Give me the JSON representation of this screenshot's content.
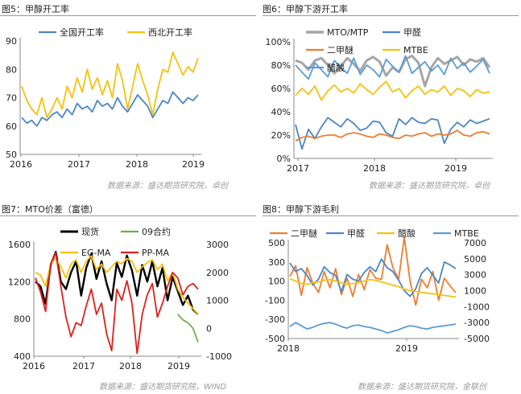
{
  "panels": [
    {
      "title": "图5：甲醇开工率",
      "source": "数据来源：盛达期货研究院，卓创"
    },
    {
      "title": "图6：甲醇下游开工率",
      "source": "数据来源：盛达期货研究院，卓创"
    },
    {
      "title": "图7：MTO价差（富德）",
      "source": "数据来源：盛达期货研究院，WIND"
    },
    {
      "title": "图8：甲醇下游毛利",
      "source": "数据来源：盛达期货研究院，金联创"
    }
  ],
  "colors": {
    "blue": "#4A86C8",
    "orange": "#ED7D31",
    "yellow": "#F4C20D",
    "gray": "#A6A6A6",
    "black": "#000000",
    "green": "#70AD47",
    "red": "#E0201B",
    "lightblue": "#5B9BD5"
  },
  "chart_data": [
    {
      "type": "line",
      "ylim": [
        50,
        85
      ],
      "yticks": [
        "50",
        "60",
        "70",
        "80",
        "90"
      ],
      "xticks": [
        "2016",
        "2017",
        "2018",
        "2019"
      ],
      "legend_position": "top",
      "series": [
        {
          "name": "全国开工率",
          "color": "blue",
          "values": [
            63,
            61,
            62,
            60,
            63,
            62,
            64,
            65,
            63,
            66,
            64,
            68,
            66,
            67,
            65,
            69,
            67,
            68,
            66,
            70,
            67,
            65,
            68,
            71,
            69,
            67,
            63,
            66,
            69,
            68,
            72,
            70,
            68,
            70,
            69,
            71
          ]
        },
        {
          "name": "西北开工率",
          "color": "yellow",
          "values": [
            74,
            69,
            66,
            64,
            70,
            63,
            66,
            70,
            66,
            74,
            70,
            77,
            72,
            80,
            73,
            77,
            71,
            76,
            70,
            82,
            76,
            66,
            74,
            82,
            76,
            71,
            64,
            73,
            80,
            79,
            86,
            82,
            78,
            81,
            79,
            84
          ]
        }
      ]
    },
    {
      "type": "line",
      "ylim": [
        0,
        100
      ],
      "yticks": [
        "0%",
        "20%",
        "40%",
        "60%",
        "80%",
        "100%"
      ],
      "xticks": [
        "2017",
        "2018",
        "2019"
      ],
      "legend_position": "top",
      "series": [
        {
          "name": "MTO/MTP",
          "color": "gray",
          "values": [
            84,
            82,
            76,
            84,
            86,
            80,
            73,
            79,
            86,
            81,
            75,
            84,
            87,
            83,
            71,
            78,
            74,
            85,
            88,
            82,
            62,
            78,
            86,
            81,
            84,
            87,
            80,
            85,
            83,
            86,
            78
          ]
        },
        {
          "name": "甲醛",
          "color": "blue",
          "values": [
            29,
            8,
            25,
            17,
            27,
            35,
            31,
            27,
            34,
            30,
            24,
            26,
            32,
            31,
            22,
            19,
            34,
            29,
            35,
            31,
            30,
            34,
            33,
            13,
            25,
            31,
            27,
            33,
            30,
            32,
            34
          ]
        },
        {
          "name": "二甲醚",
          "color": "orange",
          "values": [
            15,
            18,
            19,
            17,
            19,
            20,
            20,
            18,
            21,
            22,
            21,
            19,
            18,
            21,
            20,
            18,
            17,
            20,
            19,
            21,
            22,
            19,
            21,
            20,
            21,
            24,
            20,
            19,
            22,
            23,
            21
          ]
        },
        {
          "name": "MTBE",
          "color": "yellow",
          "values": [
            54,
            60,
            55,
            62,
            50,
            58,
            63,
            57,
            60,
            56,
            64,
            59,
            55,
            61,
            66,
            57,
            60,
            52,
            58,
            62,
            55,
            59,
            57,
            62,
            54,
            60,
            58,
            53,
            59,
            56,
            57
          ]
        },
        {
          "name": "醋酸",
          "color": "lightblue",
          "values": [
            80,
            74,
            68,
            82,
            76,
            70,
            84,
            78,
            73,
            86,
            72,
            80,
            76,
            70,
            85,
            79,
            74,
            88,
            73,
            78,
            83,
            75,
            80,
            72,
            86,
            77,
            82,
            74,
            79,
            85,
            73
          ]
        }
      ]
    },
    {
      "type": "line",
      "ylim_left": [
        400,
        1600
      ],
      "ylim_right": [
        -1000,
        3000
      ],
      "yticks_left": [
        "400",
        "800",
        "1200",
        "1600"
      ],
      "yticks_right": [
        "-1000",
        "0",
        "1000",
        "2000",
        "3000"
      ],
      "xticks": [
        "2016",
        "2017",
        "2018",
        "2019"
      ],
      "legend_position": "top",
      "series": [
        {
          "name": "现货",
          "color": "black",
          "axis": "left",
          "values": [
            1200,
            1150,
            960,
            1380,
            1520,
            1200,
            1120,
            1300,
            1420,
            1050,
            1350,
            1500,
            1230,
            1420,
            1180,
            1000,
            1400,
            1250,
            1480,
            1320,
            1050,
            1380,
            1200,
            1420,
            1150,
            1350,
            1000,
            1250,
            1100,
            950,
            1050,
            900,
            850
          ]
        },
        {
          "name": "09合约",
          "color": "green",
          "axis": "right",
          "values": [
            null,
            null,
            null,
            null,
            null,
            null,
            null,
            null,
            null,
            null,
            null,
            null,
            null,
            null,
            null,
            null,
            null,
            null,
            null,
            null,
            null,
            null,
            null,
            null,
            null,
            null,
            null,
            null,
            500,
            300,
            200,
            0,
            -500
          ]
        },
        {
          "name": "EG-MA",
          "color": "yellow",
          "axis": "right",
          "values": [
            2000,
            1900,
            1500,
            2300,
            2500,
            2200,
            1800,
            2300,
            2450,
            2000,
            2400,
            2600,
            2100,
            2300,
            2000,
            2200,
            2400,
            2300,
            2500,
            2400,
            2000,
            2200,
            2350,
            2450,
            2100,
            2300,
            1700,
            2000,
            1400,
            1100,
            900,
            700,
            500
          ]
        },
        {
          "name": "PP-MA",
          "color": "red",
          "axis": "right",
          "values": [
            1800,
            1300,
            600,
            2300,
            2700,
            1500,
            400,
            -300,
            200,
            100,
            800,
            1400,
            500,
            900,
            -200,
            -800,
            1400,
            1000,
            1700,
            900,
            -900,
            500,
            1200,
            1600,
            400,
            900,
            1500,
            2000,
            1800,
            1200,
            1500,
            1600,
            1400
          ]
        }
      ]
    },
    {
      "type": "line",
      "ylim_left": [
        -500,
        500
      ],
      "ylim_right": [
        -5000,
        7000
      ],
      "yticks_left": [
        "-500",
        "-300",
        "-100",
        "100",
        "300",
        "500"
      ],
      "yticks_right": [
        "-5000",
        "-3000",
        "-1000",
        "1000",
        "3000",
        "5000",
        "7000"
      ],
      "xticks": [
        "2018",
        "2019"
      ],
      "legend_position": "top",
      "series": [
        {
          "name": "二甲醚",
          "color": "orange",
          "axis": "left",
          "values": [
            150,
            260,
            -50,
            240,
            80,
            -20,
            200,
            30,
            230,
            -40,
            130,
            -60,
            170,
            10,
            220,
            130,
            120,
            480,
            240,
            120,
            560,
            100,
            -150,
            120,
            30,
            200,
            -100,
            130,
            50,
            -20
          ]
        },
        {
          "name": "甲醛",
          "color": "blue",
          "axis": "left",
          "values": [
            290,
            200,
            230,
            160,
            60,
            120,
            250,
            190,
            160,
            -10,
            170,
            120,
            100,
            190,
            250,
            200,
            330,
            240,
            200,
            110,
            0,
            -60,
            20,
            180,
            240,
            160,
            80,
            300,
            270,
            230
          ]
        },
        {
          "name": "醋酸",
          "color": "yellow",
          "axis": "right",
          "values": [
            2500,
            2200,
            1900,
            1800,
            2000,
            2100,
            2300,
            2400,
            2200,
            2000,
            1800,
            1900,
            2000,
            2200,
            2400,
            2300,
            2100,
            1900,
            1700,
            1500,
            1200,
            1000,
            900,
            800,
            700,
            600,
            500,
            400,
            300,
            200
          ]
        },
        {
          "name": "MTBE",
          "color": "lightblue",
          "axis": "right",
          "values": [
            -3500,
            -3000,
            -3400,
            -3800,
            -3600,
            -3300,
            -3100,
            -3000,
            -3200,
            -3500,
            -3700,
            -3400,
            -3300,
            -3500,
            -3600,
            -3800,
            -4000,
            -4300,
            -4100,
            -3900,
            -3600,
            -3400,
            -3500,
            -3700,
            -3800,
            -3600,
            -3500,
            -3400,
            -3300,
            -3200
          ]
        }
      ]
    }
  ]
}
